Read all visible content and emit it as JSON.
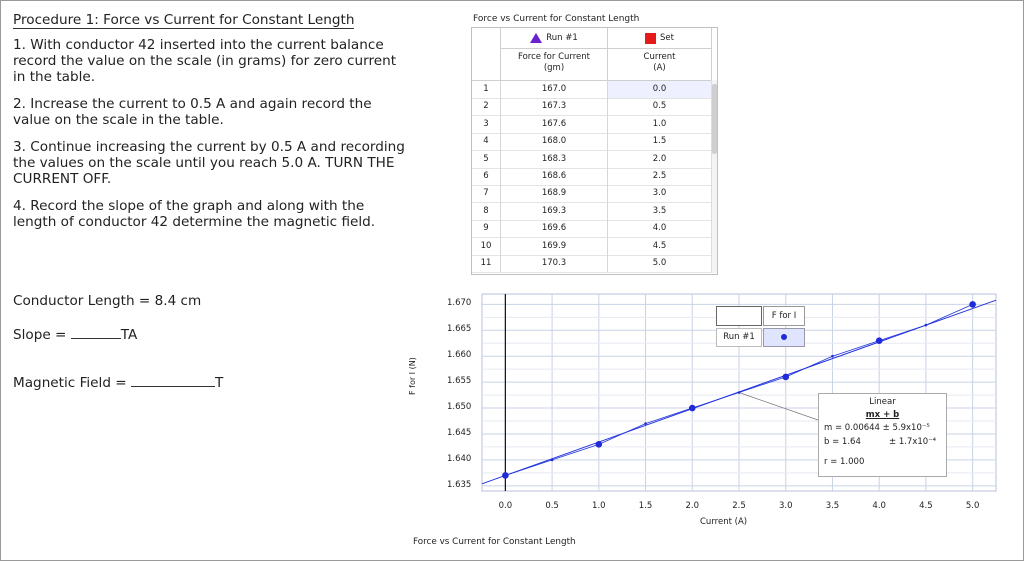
{
  "procedure": {
    "title": "Procedure 1: Force vs Current for Constant Length",
    "steps": [
      "1. With conductor 42 inserted into the current balance record the value on the scale (in grams) for zero current in the table.",
      "2. Increase the current to 0.5 A and again record the value on the scale in the table.",
      "3. Continue increasing the current by 0.5 A and recording the values on the scale until you reach 5.0 A. TURN THE CURRENT OFF.",
      "4. Record the slope of the graph and along with the length of conductor 42 determine the magnetic field."
    ],
    "conductor_length": "Conductor Length = 8.4 cm",
    "slope_label": "Slope = ",
    "slope_unit": "TA",
    "field_label": "Magnetic Field = ",
    "field_unit": "T"
  },
  "table": {
    "title": "Force vs Current for Constant Length",
    "run_label": "Run #1",
    "set_label": "Set",
    "col1": [
      "Force for Current",
      "(gm)"
    ],
    "col2": [
      "Current",
      "(A)"
    ],
    "rows": [
      {
        "n": "1",
        "force": "167.0",
        "current": "0.0"
      },
      {
        "n": "2",
        "force": "167.3",
        "current": "0.5"
      },
      {
        "n": "3",
        "force": "167.6",
        "current": "1.0"
      },
      {
        "n": "4",
        "force": "168.0",
        "current": "1.5"
      },
      {
        "n": "5",
        "force": "168.3",
        "current": "2.0"
      },
      {
        "n": "6",
        "force": "168.6",
        "current": "2.5"
      },
      {
        "n": "7",
        "force": "168.9",
        "current": "3.0"
      },
      {
        "n": "8",
        "force": "169.3",
        "current": "3.5"
      },
      {
        "n": "9",
        "force": "169.6",
        "current": "4.0"
      },
      {
        "n": "10",
        "force": "169.9",
        "current": "4.5"
      },
      {
        "n": "11",
        "force": "170.3",
        "current": "5.0"
      }
    ]
  },
  "graph": {
    "ylabel": "F for I (N)",
    "xlabel": "Current (A)",
    "footer": "Force vs Current for Constant Length",
    "legend": {
      "series": "F for I",
      "run": "Run #1"
    },
    "fit": {
      "title": "Linear",
      "eq": "mx + b",
      "m": "m = 0.00644 ± 5.9x10⁻⁵",
      "b": "b = 1.64",
      "b_err": "± 1.7x10⁻⁴",
      "r": "r = 1.000"
    },
    "colors": {
      "line": "#2233dd",
      "point": "#1f2bd6",
      "grid": "#c9d2e6"
    }
  },
  "chart_data": {
    "type": "scatter",
    "x": [
      0.0,
      0.5,
      1.0,
      1.5,
      2.0,
      2.5,
      3.0,
      3.5,
      4.0,
      4.5,
      5.0
    ],
    "y": [
      1.637,
      1.64,
      1.643,
      1.647,
      1.65,
      1.653,
      1.656,
      1.66,
      1.663,
      1.666,
      1.67
    ],
    "xticks": [
      "0.0",
      "0.5",
      "1.0",
      "1.5",
      "2.0",
      "2.5",
      "3.0",
      "3.5",
      "4.0",
      "4.5",
      "5.0"
    ],
    "yticks": [
      "1.635",
      "1.640",
      "1.645",
      "1.650",
      "1.655",
      "1.660",
      "1.665",
      "1.670"
    ],
    "xlim": [
      -0.25,
      5.25
    ],
    "ylim": [
      1.634,
      1.672
    ],
    "xlabel": "Current (A)",
    "ylabel": "F for I (N)",
    "fit": {
      "type": "linear",
      "m": 0.00644,
      "b": 1.637
    },
    "grid": true
  }
}
